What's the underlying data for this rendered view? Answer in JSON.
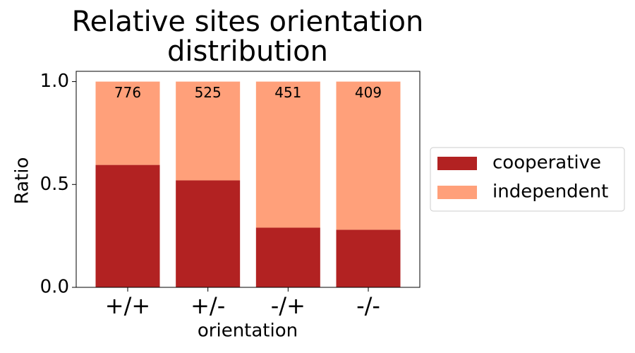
{
  "chart_data": {
    "type": "stacked_bar",
    "title": "Relative sites orientation distribution",
    "x_label": "orientation",
    "y_label": "Ratio",
    "categories": [
      "+/+",
      "+/-",
      "-/+",
      "-/-"
    ],
    "series": [
      {
        "name": "cooperative",
        "color": "#b22222",
        "values": [
          0.595,
          0.52,
          0.29,
          0.28
        ]
      },
      {
        "name": "independent",
        "color": "#ffa07a",
        "values": [
          0.405,
          0.48,
          0.71,
          0.72
        ]
      }
    ],
    "counts": [
      776,
      525,
      451,
      409
    ],
    "ylim": [
      0,
      1.05
    ],
    "yticks": [
      {
        "value": 0,
        "label": "0.0"
      },
      {
        "value": 0.5,
        "label": "0.5"
      },
      {
        "value": 1,
        "label": "1.0"
      }
    ],
    "legend": "outside-right"
  }
}
